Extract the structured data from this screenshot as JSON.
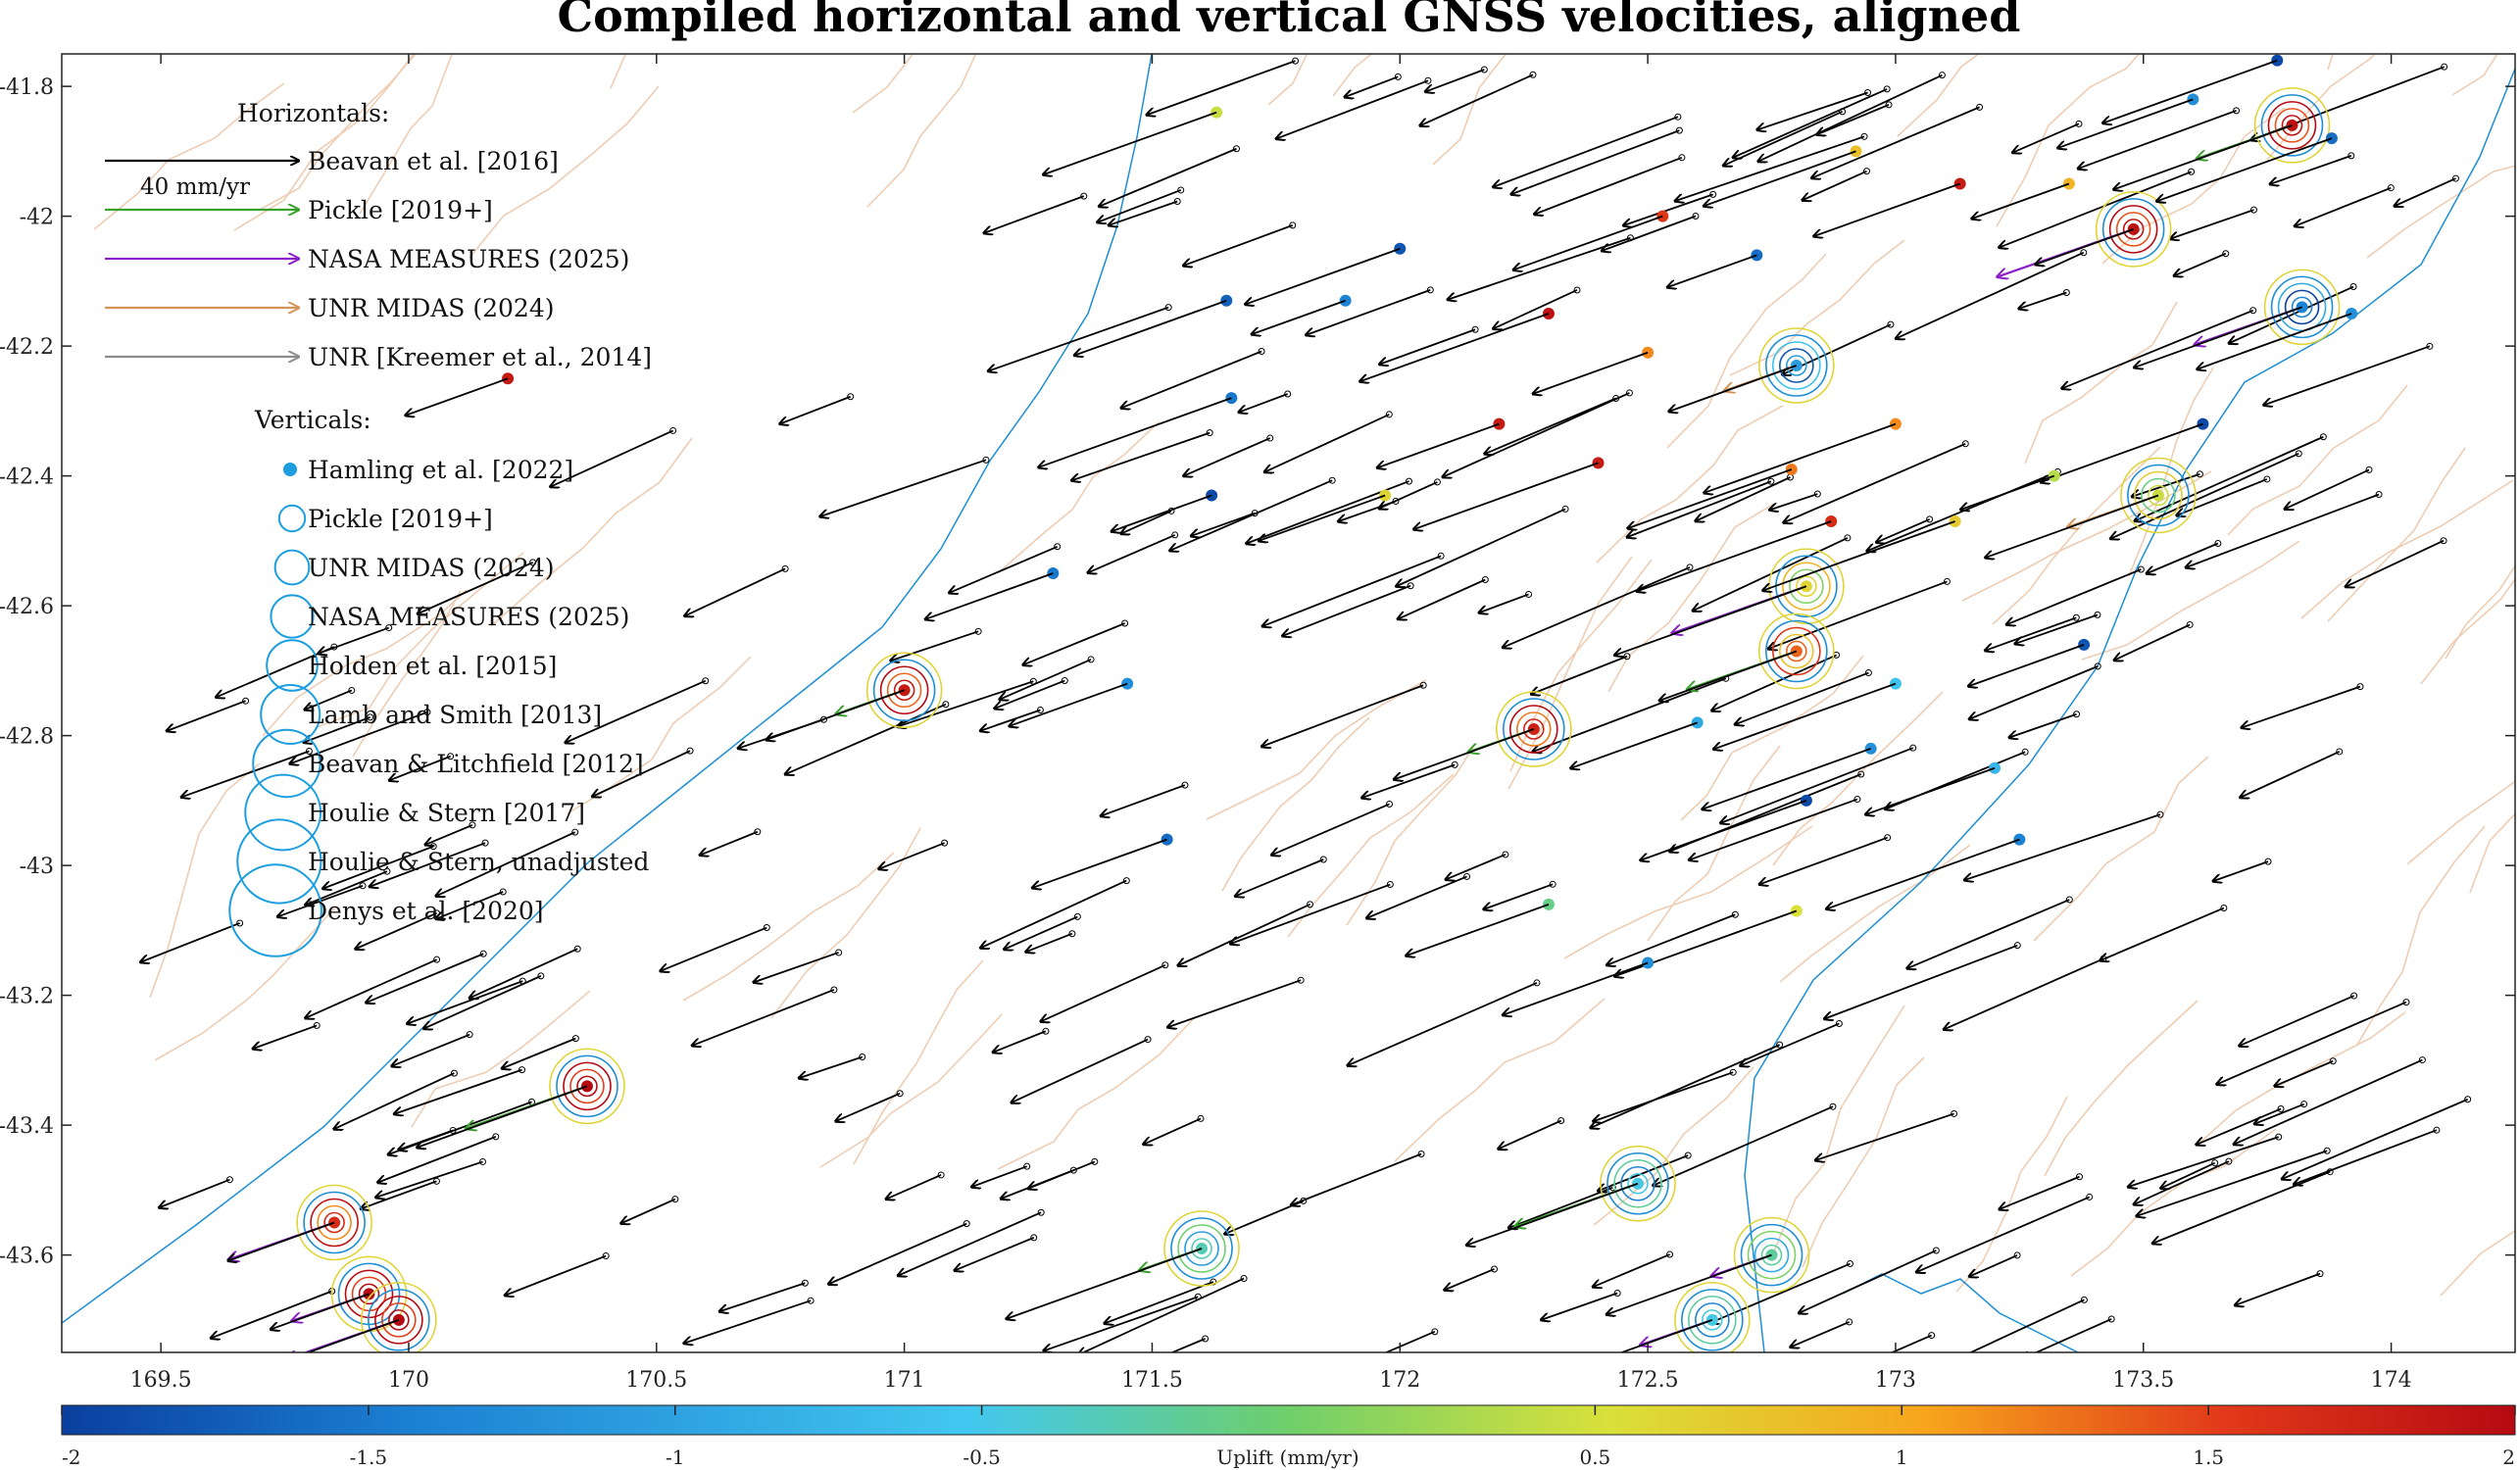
{
  "chart_data": {
    "type": "scatter",
    "title": "Compiled horizontal and vertical GNSS velocities, aligned",
    "xlabel": "",
    "ylabel": "",
    "xlim": [
      169.3,
      174.25
    ],
    "ylim": [
      -43.75,
      -41.75
    ],
    "x_ticks": [
      "169.5",
      "170",
      "170.5",
      "171",
      "171.5",
      "172",
      "172.5",
      "173",
      "173.5",
      "174"
    ],
    "y_ticks": [
      "-41.8",
      "-42",
      "-42.2",
      "-42.4",
      "-42.6",
      "-42.8",
      "-43",
      "-43.2",
      "-43.4",
      "-43.6"
    ],
    "grid": false,
    "legend_position": "top-left",
    "legend": {
      "horizontals_heading": "Horizontals:",
      "scale_label": "40 mm/yr",
      "horizontal_entries": [
        {
          "name": "Beavan et al. [2016]",
          "color": "#000000"
        },
        {
          "name": "Pickle [2019+]",
          "color": "#3aa02e"
        },
        {
          "name": "NASA MEASURES (2025)",
          "color": "#8b1fc8"
        },
        {
          "name": "UNR MIDAS (2024)",
          "color": "#d4955a"
        },
        {
          "name": "UNR [Kreemer et al., 2014]",
          "color": "#8c8c8c"
        }
      ],
      "verticals_heading": "Verticals:",
      "vertical_entries": [
        {
          "name": "Hamling et al. [2022]"
        },
        {
          "name": "Pickle [2019+]"
        },
        {
          "name": "UNR MIDAS (2024)"
        },
        {
          "name": "NASA MEASURES (2025)"
        },
        {
          "name": "Holden et al. [2015]"
        },
        {
          "name": "Lamb and Smith [2013]"
        },
        {
          "name": "Beavan & Litchfield [2012]"
        },
        {
          "name": "Houlie & Stern [2017]"
        },
        {
          "name": "Houlie & Stern, unadjusted"
        },
        {
          "name": "Denys et al. [2020]"
        }
      ]
    },
    "colorbar": {
      "label": "Uplift (mm/yr)",
      "range": [
        -2,
        2
      ],
      "ticks": [
        "-2",
        "-1.5",
        "-1",
        "-0.5",
        "0.5",
        "1",
        "1.5",
        "2"
      ],
      "colors": [
        "#0a3f9e",
        "#1b7fd2",
        "#42c8f0",
        "#6fcf6a",
        "#d9e03a",
        "#f7a51c",
        "#e23a1a",
        "#b50a12"
      ]
    },
    "stations": [
      {
        "x": 171.0,
        "y": -42.73,
        "uplift": 1.8,
        "rings": true
      },
      {
        "x": 172.27,
        "y": -42.79,
        "uplift": 1.7,
        "rings": true
      },
      {
        "x": 173.53,
        "y": -42.43,
        "uplift": 0.2,
        "rings": true
      },
      {
        "x": 170.36,
        "y": -43.34,
        "uplift": 2.0,
        "rings": true
      },
      {
        "x": 171.6,
        "y": -43.59,
        "uplift": -0.6,
        "rings": true
      },
      {
        "x": 172.63,
        "y": -43.7,
        "uplift": -0.8,
        "rings": true
      },
      {
        "x": 172.75,
        "y": -43.6,
        "uplift": -0.5,
        "rings": true
      },
      {
        "x": 169.92,
        "y": -43.66,
        "uplift": 2.0,
        "rings": true
      },
      {
        "x": 169.98,
        "y": -43.7,
        "uplift": 2.0,
        "rings": true
      },
      {
        "x": 169.85,
        "y": -43.55,
        "uplift": 1.6,
        "rings": true
      },
      {
        "x": 173.8,
        "y": -41.86,
        "uplift": 1.9,
        "rings": true
      },
      {
        "x": 172.82,
        "y": -42.57,
        "uplift": 0.4,
        "rings": true
      },
      {
        "x": 172.8,
        "y": -42.67,
        "uplift": 1.2,
        "rings": true
      },
      {
        "x": 172.8,
        "y": -42.23,
        "uplift": -1.2,
        "rings": true
      },
      {
        "x": 173.48,
        "y": -42.02,
        "uplift": 1.9,
        "rings": true
      },
      {
        "x": 173.82,
        "y": -42.14,
        "uplift": -1.4,
        "rings": true
      },
      {
        "x": 172.48,
        "y": -43.49,
        "uplift": -0.8,
        "rings": true
      },
      {
        "x": 170.2,
        "y": -42.25,
        "uplift": 1.8,
        "rings": false
      },
      {
        "x": 171.53,
        "y": -42.96,
        "uplift": -1.6,
        "rings": false
      },
      {
        "x": 171.97,
        "y": -42.43,
        "uplift": 0.4,
        "rings": false
      },
      {
        "x": 172.4,
        "y": -42.38,
        "uplift": 1.8,
        "rings": false
      },
      {
        "x": 172.79,
        "y": -42.39,
        "uplift": 1.1,
        "rings": false
      },
      {
        "x": 173.62,
        "y": -42.32,
        "uplift": -1.9,
        "rings": false
      },
      {
        "x": 173.92,
        "y": -42.15,
        "uplift": -1.3,
        "rings": false
      },
      {
        "x": 173.0,
        "y": -42.32,
        "uplift": 1.0,
        "rings": false
      },
      {
        "x": 172.95,
        "y": -42.82,
        "uplift": -1.3,
        "rings": false
      },
      {
        "x": 173.2,
        "y": -42.85,
        "uplift": -1.0,
        "rings": false
      },
      {
        "x": 173.25,
        "y": -42.96,
        "uplift": -1.4,
        "rings": false
      },
      {
        "x": 172.82,
        "y": -42.9,
        "uplift": -1.9,
        "rings": false
      },
      {
        "x": 172.8,
        "y": -43.07,
        "uplift": 0.3,
        "rings": false
      },
      {
        "x": 172.5,
        "y": -43.15,
        "uplift": -1.3,
        "rings": false
      },
      {
        "x": 172.3,
        "y": -43.06,
        "uplift": -0.4,
        "rings": false
      },
      {
        "x": 173.38,
        "y": -42.66,
        "uplift": -1.8,
        "rings": false
      },
      {
        "x": 172.6,
        "y": -42.78,
        "uplift": -1.1,
        "rings": false
      },
      {
        "x": 172.0,
        "y": -42.05,
        "uplift": -1.8,
        "rings": false
      },
      {
        "x": 171.89,
        "y": -42.13,
        "uplift": -1.4,
        "rings": false
      },
      {
        "x": 172.3,
        "y": -42.15,
        "uplift": 1.9,
        "rings": false
      },
      {
        "x": 172.92,
        "y": -41.9,
        "uplift": 0.6,
        "rings": false
      },
      {
        "x": 172.53,
        "y": -42.0,
        "uplift": 1.5,
        "rings": false
      },
      {
        "x": 173.13,
        "y": -41.95,
        "uplift": 1.8,
        "rings": false
      },
      {
        "x": 173.35,
        "y": -41.95,
        "uplift": 0.7,
        "rings": false
      },
      {
        "x": 173.88,
        "y": -41.88,
        "uplift": -1.6,
        "rings": false
      },
      {
        "x": 173.6,
        "y": -41.82,
        "uplift": -1.3,
        "rings": false
      },
      {
        "x": 173.77,
        "y": -41.76,
        "uplift": -1.9,
        "rings": false
      },
      {
        "x": 171.45,
        "y": -42.72,
        "uplift": -1.3,
        "rings": false
      },
      {
        "x": 171.62,
        "y": -42.43,
        "uplift": -1.9,
        "rings": false
      },
      {
        "x": 171.66,
        "y": -42.28,
        "uplift": -1.5,
        "rings": false
      },
      {
        "x": 171.65,
        "y": -42.13,
        "uplift": -1.7,
        "rings": false
      },
      {
        "x": 171.3,
        "y": -42.55,
        "uplift": -1.5,
        "rings": false
      },
      {
        "x": 171.63,
        "y": -41.84,
        "uplift": 0.2,
        "rings": false
      },
      {
        "x": 172.87,
        "y": -42.47,
        "uplift": 1.6,
        "rings": false
      },
      {
        "x": 172.72,
        "y": -42.06,
        "uplift": -1.6,
        "rings": false
      },
      {
        "x": 172.2,
        "y": -42.32,
        "uplift": 1.8,
        "rings": false
      },
      {
        "x": 172.5,
        "y": -42.21,
        "uplift": 1.0,
        "rings": false
      },
      {
        "x": 173.0,
        "y": -42.72,
        "uplift": -0.9,
        "rings": false
      },
      {
        "x": 173.32,
        "y": -42.4,
        "uplift": 0.1,
        "rings": false
      },
      {
        "x": 173.12,
        "y": -42.47,
        "uplift": 0.5,
        "rings": false
      }
    ]
  }
}
